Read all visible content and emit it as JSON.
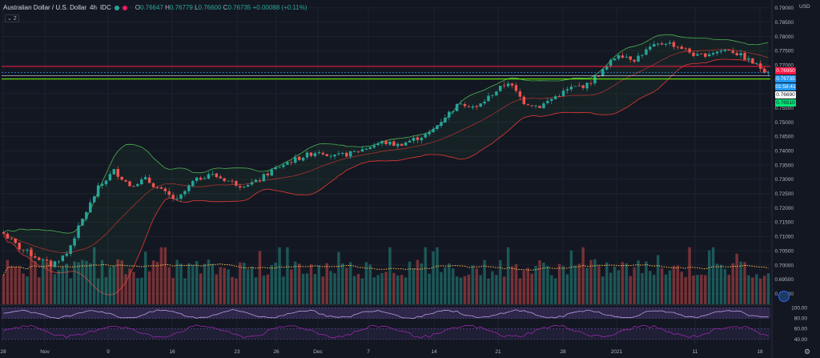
{
  "legend": {
    "symbol": "Australian Dollar / U.S. Dollar",
    "interval": "4h",
    "exchange": "IDC",
    "open": "0.76647",
    "high": "0.76779",
    "low": "0.76600",
    "close": "0.76735",
    "change": "+0.00088 (+0.11%)",
    "o_label": "O",
    "h_label": "H",
    "l_label": "L",
    "c_label": "C",
    "collapse_count": "2"
  },
  "axis": {
    "currency": "USD",
    "price_ticks": [
      "0.79000",
      "0.78500",
      "0.78000",
      "0.77500",
      "0.77000",
      "0.76500",
      "0.76000",
      "0.75500",
      "0.75000",
      "0.74500",
      "0.74000",
      "0.73500",
      "0.73000",
      "0.72500",
      "0.72000",
      "0.71500",
      "0.71000",
      "0.70500",
      "0.70000",
      "0.69500",
      "0.69000"
    ],
    "osc_ticks": [
      "100.00",
      "80.00",
      "60.00",
      "40.00"
    ],
    "date_ticks": [
      "28",
      "Nov",
      "9",
      "16",
      "23",
      "26",
      "Dec",
      "7",
      "14",
      "21",
      "28",
      "2021",
      "11",
      "18"
    ]
  },
  "price_labels": {
    "resistance": "0.76950",
    "last": "0.76735",
    "countdown": "01:58:41",
    "plain": "0.76690",
    "support": "0.76510"
  },
  "colors": {
    "background": "#131722",
    "up": "#26a69a",
    "down": "#ef5350",
    "bb_band": "#4caf50",
    "bb_basis": "#e53935",
    "volume_ma": "#ffb74d",
    "resistance": "#ff1744",
    "support": "#76ff03",
    "last_price": "#2196f3",
    "oscillator": "#9c27b0"
  },
  "icons": [
    "chart-settings-icon",
    "axis-settings-icon"
  ],
  "chart_data": {
    "type": "candlestick",
    "title": "Australian Dollar / U.S. Dollar",
    "interval": "4h",
    "ylim": [
      0.6885,
      0.7905
    ],
    "x_ticks": [
      "28",
      "Nov",
      "9",
      "16",
      "23",
      "26",
      "Dec",
      "7",
      "14",
      "21",
      "28",
      "2021",
      "11",
      "18"
    ],
    "close_path": [
      [
        0,
        0.711
      ],
      [
        4,
        0.706
      ],
      [
        8,
        0.703
      ],
      [
        12,
        0.7
      ],
      [
        16,
        0.704
      ],
      [
        20,
        0.716
      ],
      [
        24,
        0.727
      ],
      [
        28,
        0.733
      ],
      [
        32,
        0.728
      ],
      [
        36,
        0.73
      ],
      [
        40,
        0.726
      ],
      [
        44,
        0.7225
      ],
      [
        48,
        0.729
      ],
      [
        52,
        0.732
      ],
      [
        56,
        0.73
      ],
      [
        60,
        0.728
      ],
      [
        64,
        0.729
      ],
      [
        68,
        0.733
      ],
      [
        72,
        0.736
      ],
      [
        76,
        0.738
      ],
      [
        80,
        0.74
      ],
      [
        84,
        0.738
      ],
      [
        88,
        0.739
      ],
      [
        92,
        0.741
      ],
      [
        96,
        0.743
      ],
      [
        100,
        0.742
      ],
      [
        104,
        0.744
      ],
      [
        108,
        0.746
      ],
      [
        112,
        0.752
      ],
      [
        116,
        0.757
      ],
      [
        120,
        0.755
      ],
      [
        124,
        0.76
      ],
      [
        128,
        0.764
      ],
      [
        132,
        0.757
      ],
      [
        136,
        0.7555
      ],
      [
        140,
        0.759
      ],
      [
        144,
        0.762
      ],
      [
        148,
        0.763
      ],
      [
        152,
        0.768
      ],
      [
        156,
        0.774
      ],
      [
        160,
        0.772
      ],
      [
        164,
        0.776
      ],
      [
        168,
        0.778
      ],
      [
        172,
        0.776
      ],
      [
        176,
        0.773
      ],
      [
        180,
        0.7745
      ],
      [
        184,
        0.7755
      ],
      [
        188,
        0.7725
      ],
      [
        192,
        0.769
      ],
      [
        194,
        0.7673
      ]
    ],
    "resistance_level": 0.7695,
    "support_level": 0.7651,
    "last_price": 0.76735
  }
}
